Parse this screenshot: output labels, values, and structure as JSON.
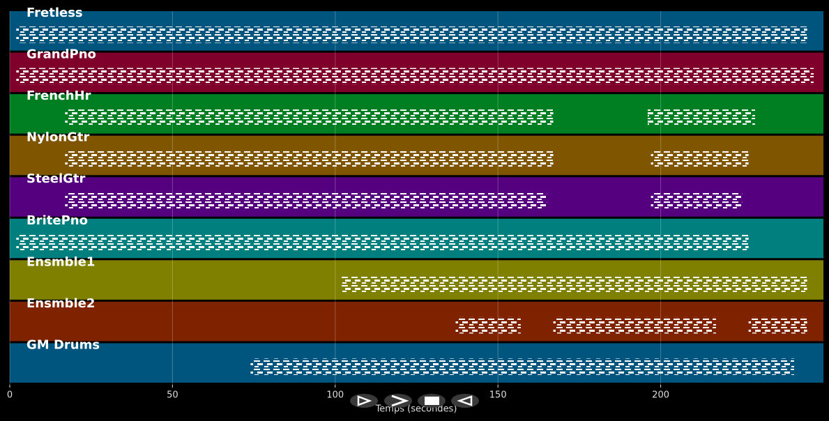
{
  "chart_data": {
    "type": "pianoroll",
    "x_label": "Temps (secondes)",
    "xlim": [
      0,
      250
    ],
    "xticks": [
      0,
      50,
      100,
      150,
      200
    ],
    "grid": true,
    "tracks": [
      {
        "name": "Fretless",
        "color": "#00557f",
        "segments": [
          [
            2,
            245
          ]
        ]
      },
      {
        "name": "GrandPno",
        "color": "#7f002a",
        "segments": [
          [
            2,
            247
          ]
        ]
      },
      {
        "name": "FrenchHr",
        "color": "#007f22",
        "segments": [
          [
            17,
            167
          ],
          [
            196,
            229
          ]
        ]
      },
      {
        "name": "NylonGtr",
        "color": "#7f5500",
        "segments": [
          [
            17,
            167
          ],
          [
            197,
            227
          ]
        ]
      },
      {
        "name": "SteelGtr",
        "color": "#55007f",
        "segments": [
          [
            17,
            165
          ],
          [
            197,
            225
          ]
        ]
      },
      {
        "name": "BritePno",
        "color": "#007f7f",
        "segments": [
          [
            2,
            227
          ]
        ]
      },
      {
        "name": "Ensmble1",
        "color": "#7f7f00",
        "segments": [
          [
            102,
            245
          ]
        ]
      },
      {
        "name": "Ensmble2",
        "color": "#7f2200",
        "segments": [
          [
            137,
            157
          ],
          [
            167,
            217
          ],
          [
            227,
            245
          ]
        ]
      },
      {
        "name": "GM Drums",
        "color": "#00557f",
        "segments": [
          [
            74,
            241
          ]
        ]
      }
    ]
  }
}
